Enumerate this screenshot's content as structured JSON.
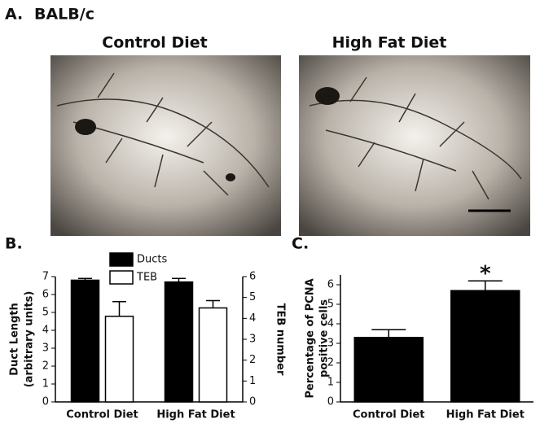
{
  "panel_a": {
    "label": "A.",
    "title": "BALB/c",
    "images": [
      "Control Diet",
      "High Fat Diet"
    ]
  },
  "chart_data": [
    {
      "type": "bar",
      "panel_label": "B.",
      "categories": [
        "Control Diet",
        "High Fat Diet"
      ],
      "ylabel": [
        "Duct Length",
        "(arbitrary units)"
      ],
      "y2label": "TEB number",
      "ylim": [
        0,
        7
      ],
      "yticks": [
        0,
        1,
        2,
        3,
        4,
        5,
        6,
        7
      ],
      "y2lim": [
        0,
        6
      ],
      "y2ticks": [
        0,
        1,
        2,
        3,
        4,
        5,
        6
      ],
      "legend": "top",
      "series": [
        {
          "name": "Ducts",
          "color": "#000000",
          "values": [
            6.8,
            6.7
          ],
          "errors": [
            0.1,
            0.2
          ]
        },
        {
          "name": "TEB",
          "color": "#ffffff",
          "axis": "y2",
          "values": [
            4.1,
            4.5
          ],
          "errors": [
            0.7,
            0.35
          ]
        }
      ]
    },
    {
      "type": "bar",
      "panel_label": "C.",
      "categories": [
        "Control Diet",
        "High Fat Diet"
      ],
      "ylabel": [
        "Percentage of PCNA",
        "positive cells"
      ],
      "ylim": [
        0,
        6.5
      ],
      "yticks": [
        0,
        1,
        2,
        3,
        4,
        5,
        6
      ],
      "color": "#000000",
      "values": [
        3.3,
        5.7
      ],
      "errors": [
        0.4,
        0.5
      ],
      "annotations": [
        {
          "text": "*",
          "category": 1
        }
      ]
    }
  ]
}
